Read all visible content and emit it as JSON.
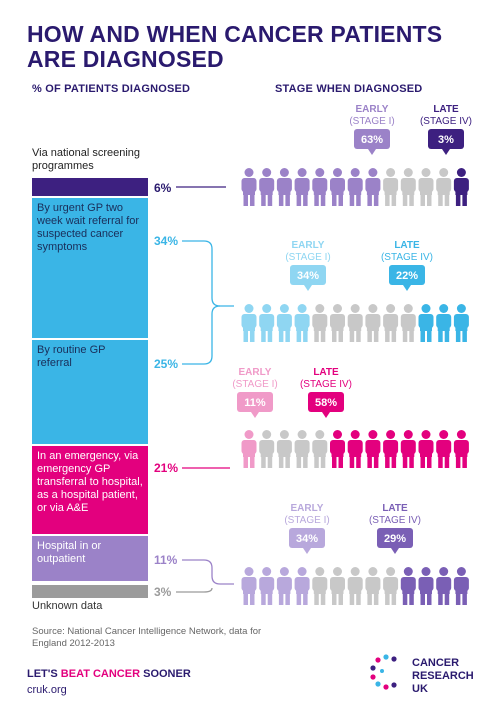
{
  "title": "HOW AND WHEN CANCER PATIENTS ARE DIAGNOSED",
  "headers": {
    "left": "% OF PATIENTS DIAGNOSED",
    "right": "STAGE WHEN DIAGNOSED"
  },
  "colors": {
    "dark_purple": "#3d2080",
    "sky_blue": "#3ab5e6",
    "magenta": "#e3007e",
    "lavender": "#9b82c8",
    "grey_person": "#c8c8c8",
    "unknown_bar": "#9b9b9b",
    "title": "#2a1a6e"
  },
  "chart_data": {
    "type": "stacked-bar-with-pictograms",
    "routes": [
      {
        "label": "Via national screening programmes",
        "percent": 6,
        "percent_label": "6%",
        "early_label": "EARLY",
        "early_sub": "(STAGE I)",
        "early_pct": 63,
        "early_text": "63%",
        "late_label": "LATE",
        "late_sub": "(STAGE IV)",
        "late_pct": 3,
        "late_text": "3%"
      },
      {
        "label": "By urgent GP two week wait referral for suspected cancer symptoms",
        "percent": 34,
        "percent_label": "34%",
        "early_label": "EARLY",
        "early_sub": "(STAGE I)",
        "early_pct": 34,
        "early_text": "34%",
        "late_label": "LATE",
        "late_sub": "(STAGE IV)",
        "late_pct": 22,
        "late_text": "22%"
      },
      {
        "label": "By routine GP referral",
        "percent": 25,
        "percent_label": "25%"
      },
      {
        "label": "In an emergency, via emergency GP transferral to hospital, as a hospital patient, or via A&E",
        "percent": 21,
        "percent_label": "21%",
        "early_label": "EARLY",
        "early_sub": "(STAGE I)",
        "early_pct": 11,
        "early_text": "11%",
        "late_label": "LATE",
        "late_sub": "(STAGE IV)",
        "late_pct": 58,
        "late_text": "58%"
      },
      {
        "label": "Hospital in or outpatient",
        "percent": 11,
        "percent_label": "11%",
        "early_label": "EARLY",
        "early_sub": "(STAGE I)",
        "early_pct": 34,
        "early_text": "34%",
        "late_label": "LATE",
        "late_sub": "(STAGE IV)",
        "late_pct": 29,
        "late_text": "29%"
      },
      {
        "label": "Unknown data",
        "percent": 3,
        "percent_label": "3%"
      }
    ]
  },
  "source": "Source: National Cancer Intelligence Network, data for England 2012-2013",
  "footer": {
    "slogan_a": "LET'S ",
    "slogan_b": "BEAT CANCER",
    "slogan_c": " SOONER",
    "url": "cruk.org",
    "logo_text": "CANCER RESEARCH UK"
  }
}
